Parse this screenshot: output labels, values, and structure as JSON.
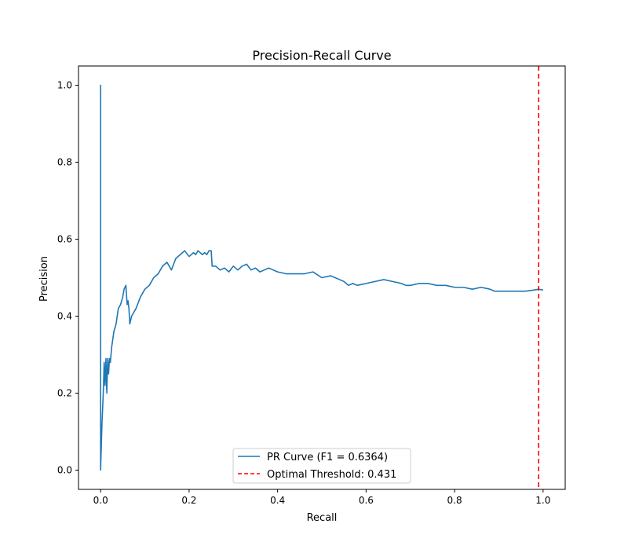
{
  "chart_data": {
    "type": "line",
    "title": "Precision-Recall Curve",
    "xlabel": "Recall",
    "ylabel": "Precision",
    "xlim": [
      -0.05,
      1.05
    ],
    "ylim": [
      -0.05,
      1.05
    ],
    "xticks": [
      0.0,
      0.2,
      0.4,
      0.6,
      0.8,
      1.0
    ],
    "xtick_labels": [
      "0.0",
      "0.2",
      "0.4",
      "0.6",
      "0.8",
      "1.0"
    ],
    "yticks": [
      0.0,
      0.2,
      0.4,
      0.6,
      0.8,
      1.0
    ],
    "ytick_labels": [
      "0.0",
      "0.2",
      "0.4",
      "0.6",
      "0.8",
      "1.0"
    ],
    "grid": false,
    "legend_position": "lower-center",
    "series": [
      {
        "name": "PR Curve (F1 = 0.6364)",
        "color": "#1f77b4",
        "style": "solid",
        "x": [
          0.0,
          0.0,
          0.0,
          0.003,
          0.006,
          0.008,
          0.01,
          0.012,
          0.014,
          0.016,
          0.018,
          0.02,
          0.022,
          0.025,
          0.03,
          0.035,
          0.04,
          0.045,
          0.05,
          0.053,
          0.057,
          0.06,
          0.062,
          0.064,
          0.066,
          0.07,
          0.075,
          0.08,
          0.09,
          0.1,
          0.11,
          0.12,
          0.13,
          0.14,
          0.15,
          0.16,
          0.17,
          0.18,
          0.19,
          0.2,
          0.21,
          0.215,
          0.22,
          0.23,
          0.235,
          0.24,
          0.245,
          0.25,
          0.252,
          0.26,
          0.27,
          0.28,
          0.29,
          0.3,
          0.31,
          0.32,
          0.33,
          0.34,
          0.35,
          0.36,
          0.37,
          0.38,
          0.39,
          0.4,
          0.42,
          0.44,
          0.46,
          0.48,
          0.5,
          0.52,
          0.53,
          0.54,
          0.55,
          0.56,
          0.57,
          0.58,
          0.6,
          0.62,
          0.64,
          0.66,
          0.68,
          0.69,
          0.7,
          0.72,
          0.74,
          0.76,
          0.78,
          0.8,
          0.82,
          0.84,
          0.86,
          0.88,
          0.89,
          0.9,
          0.92,
          0.94,
          0.96,
          0.98,
          0.99,
          1.0
        ],
        "y": [
          0.0,
          1.0,
          0.0,
          0.12,
          0.2,
          0.28,
          0.22,
          0.29,
          0.2,
          0.29,
          0.25,
          0.29,
          0.28,
          0.32,
          0.36,
          0.38,
          0.42,
          0.43,
          0.45,
          0.47,
          0.48,
          0.43,
          0.44,
          0.42,
          0.38,
          0.4,
          0.41,
          0.42,
          0.45,
          0.47,
          0.48,
          0.5,
          0.51,
          0.53,
          0.54,
          0.52,
          0.55,
          0.56,
          0.57,
          0.555,
          0.565,
          0.56,
          0.57,
          0.56,
          0.565,
          0.56,
          0.57,
          0.57,
          0.53,
          0.53,
          0.52,
          0.525,
          0.515,
          0.53,
          0.52,
          0.53,
          0.535,
          0.52,
          0.525,
          0.515,
          0.52,
          0.525,
          0.52,
          0.515,
          0.51,
          0.51,
          0.51,
          0.515,
          0.5,
          0.505,
          0.5,
          0.495,
          0.49,
          0.48,
          0.485,
          0.48,
          0.485,
          0.49,
          0.495,
          0.49,
          0.485,
          0.48,
          0.48,
          0.485,
          0.485,
          0.48,
          0.48,
          0.475,
          0.475,
          0.47,
          0.475,
          0.47,
          0.465,
          0.465,
          0.465,
          0.465,
          0.465,
          0.468,
          0.47,
          0.468
        ]
      }
    ],
    "vlines": [
      {
        "name": "Optimal Threshold: 0.431",
        "x": 0.99,
        "color": "#ff0000",
        "style": "dashed"
      }
    ]
  }
}
